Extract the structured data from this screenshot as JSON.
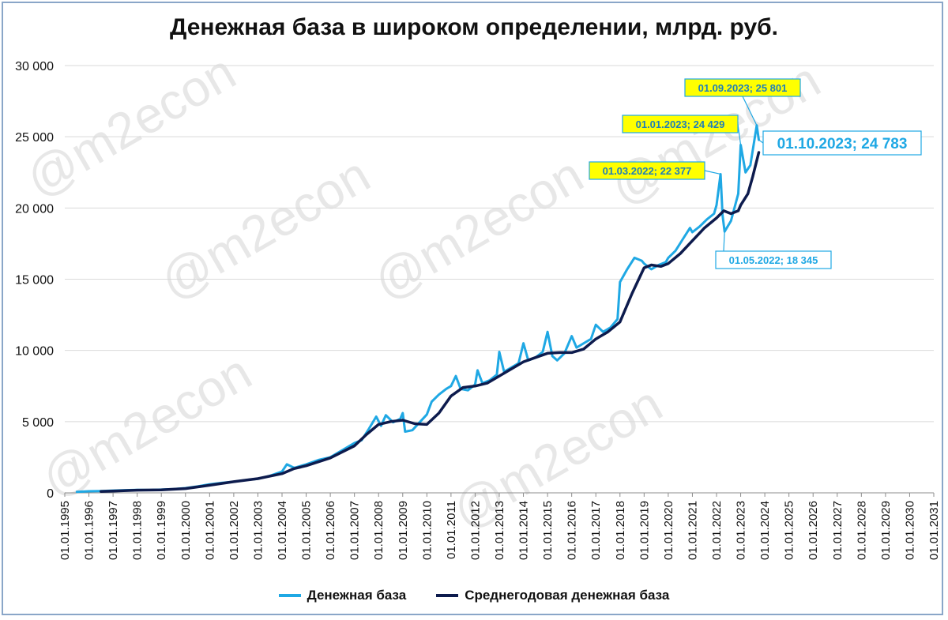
{
  "chart_data": {
    "type": "line",
    "title": "Денежная база в широком определении, млрд. руб.",
    "watermark": "@m2econ",
    "xlabel": "",
    "ylabel": "",
    "ylim": [
      0,
      30000
    ],
    "y_ticks": [
      0,
      5000,
      10000,
      15000,
      20000,
      25000,
      30000
    ],
    "y_tick_labels": [
      "0",
      "5 000",
      "10 000",
      "15 000",
      "20 000",
      "25 000",
      "30 000"
    ],
    "x_range": [
      1995,
      2031
    ],
    "x_tick_labels": [
      "01.01.1995",
      "01.01.1996",
      "01.01.1997",
      "01.01.1998",
      "01.01.1999",
      "01.01.2000",
      "01.01.2001",
      "01.01.2002",
      "01.01.2003",
      "01.01.2004",
      "01.01.2005",
      "01.01.2006",
      "01.01.2007",
      "01.01.2008",
      "01.01.2009",
      "01.01.2010",
      "01.01.2011",
      "01.01.2012",
      "01.01.2013",
      "01.01.2014",
      "01.01.2015",
      "01.01.2016",
      "01.01.2017",
      "01.01.2018",
      "01.01.2019",
      "01.01.2020",
      "01.01.2021",
      "01.01.2022",
      "01.01.2023",
      "01.01.2024",
      "01.01.2025",
      "01.01.2026",
      "01.01.2027",
      "01.01.2028",
      "01.01.2029",
      "01.01.2030",
      "01.01.2031"
    ],
    "grid": "horizontal",
    "legend_position": "bottom",
    "series": [
      {
        "name": "Денежная база",
        "color": "#1fa8e4",
        "points": [
          [
            1995.5,
            70
          ],
          [
            1996.0,
            110
          ],
          [
            1996.5,
            130
          ],
          [
            1997.0,
            160
          ],
          [
            1997.5,
            190
          ],
          [
            1998.0,
            210
          ],
          [
            1998.5,
            200
          ],
          [
            1999.0,
            230
          ],
          [
            1999.5,
            260
          ],
          [
            2000.0,
            330
          ],
          [
            2000.5,
            450
          ],
          [
            2001.0,
            600
          ],
          [
            2001.5,
            700
          ],
          [
            2002.0,
            780
          ],
          [
            2002.5,
            900
          ],
          [
            2003.0,
            980
          ],
          [
            2003.5,
            1200
          ],
          [
            2004.0,
            1500
          ],
          [
            2004.2,
            2000
          ],
          [
            2004.5,
            1750
          ],
          [
            2005.0,
            2000
          ],
          [
            2005.5,
            2300
          ],
          [
            2006.0,
            2500
          ],
          [
            2006.5,
            3000
          ],
          [
            2007.0,
            3500
          ],
          [
            2007.3,
            3700
          ],
          [
            2007.6,
            4500
          ],
          [
            2007.9,
            5350
          ],
          [
            2008.1,
            4700
          ],
          [
            2008.3,
            5450
          ],
          [
            2008.6,
            4950
          ],
          [
            2008.9,
            5200
          ],
          [
            2009.0,
            5600
          ],
          [
            2009.1,
            4300
          ],
          [
            2009.4,
            4400
          ],
          [
            2009.7,
            4950
          ],
          [
            2010.0,
            5500
          ],
          [
            2010.2,
            6400
          ],
          [
            2010.5,
            6900
          ],
          [
            2010.8,
            7300
          ],
          [
            2011.0,
            7500
          ],
          [
            2011.2,
            8200
          ],
          [
            2011.4,
            7300
          ],
          [
            2011.7,
            7200
          ],
          [
            2012.0,
            7600
          ],
          [
            2012.1,
            8600
          ],
          [
            2012.3,
            7700
          ],
          [
            2012.6,
            7900
          ],
          [
            2012.9,
            8300
          ],
          [
            2013.0,
            9900
          ],
          [
            2013.2,
            8500
          ],
          [
            2013.5,
            8800
          ],
          [
            2013.8,
            9100
          ],
          [
            2014.0,
            10500
          ],
          [
            2014.2,
            9300
          ],
          [
            2014.5,
            9500
          ],
          [
            2014.8,
            9900
          ],
          [
            2015.0,
            11300
          ],
          [
            2015.2,
            9600
          ],
          [
            2015.4,
            9300
          ],
          [
            2015.7,
            9800
          ],
          [
            2016.0,
            11000
          ],
          [
            2016.2,
            10200
          ],
          [
            2016.5,
            10500
          ],
          [
            2016.8,
            10800
          ],
          [
            2017.0,
            11800
          ],
          [
            2017.3,
            11300
          ],
          [
            2017.6,
            11600
          ],
          [
            2017.9,
            12200
          ],
          [
            2018.0,
            14800
          ],
          [
            2018.3,
            15700
          ],
          [
            2018.6,
            16500
          ],
          [
            2018.9,
            16300
          ],
          [
            2019.0,
            16100
          ],
          [
            2019.3,
            15700
          ],
          [
            2019.6,
            16000
          ],
          [
            2019.9,
            16200
          ],
          [
            2020.0,
            16500
          ],
          [
            2020.3,
            17000
          ],
          [
            2020.6,
            17800
          ],
          [
            2020.9,
            18600
          ],
          [
            2021.0,
            18300
          ],
          [
            2021.3,
            18700
          ],
          [
            2021.6,
            19200
          ],
          [
            2021.9,
            19600
          ],
          [
            2022.0,
            20200
          ],
          [
            2022.167,
            22377
          ],
          [
            2022.25,
            19500
          ],
          [
            2022.333,
            18345
          ],
          [
            2022.6,
            19100
          ],
          [
            2022.9,
            21000
          ],
          [
            2023.0,
            24429
          ],
          [
            2023.2,
            22500
          ],
          [
            2023.4,
            23000
          ],
          [
            2023.667,
            25801
          ],
          [
            2023.75,
            24783
          ]
        ]
      },
      {
        "name": "Среднегодовая денежная база",
        "color": "#0d1b4d",
        "points": [
          [
            1996.5,
            100
          ],
          [
            1997.0,
            130
          ],
          [
            1998.0,
            190
          ],
          [
            1999.0,
            210
          ],
          [
            2000.0,
            300
          ],
          [
            2001.0,
            530
          ],
          [
            2002.0,
            780
          ],
          [
            2003.0,
            1000
          ],
          [
            2004.0,
            1350
          ],
          [
            2004.5,
            1700
          ],
          [
            2005.0,
            1900
          ],
          [
            2006.0,
            2450
          ],
          [
            2007.0,
            3300
          ],
          [
            2007.5,
            4100
          ],
          [
            2008.0,
            4800
          ],
          [
            2008.5,
            5000
          ],
          [
            2009.0,
            5100
          ],
          [
            2009.5,
            4850
          ],
          [
            2010.0,
            4800
          ],
          [
            2010.5,
            5600
          ],
          [
            2011.0,
            6800
          ],
          [
            2011.5,
            7400
          ],
          [
            2012.0,
            7500
          ],
          [
            2012.5,
            7700
          ],
          [
            2013.0,
            8200
          ],
          [
            2013.5,
            8700
          ],
          [
            2014.0,
            9200
          ],
          [
            2014.5,
            9500
          ],
          [
            2015.0,
            9800
          ],
          [
            2015.5,
            9850
          ],
          [
            2016.0,
            9850
          ],
          [
            2016.5,
            10100
          ],
          [
            2017.0,
            10800
          ],
          [
            2017.5,
            11300
          ],
          [
            2018.0,
            12000
          ],
          [
            2018.5,
            14000
          ],
          [
            2019.0,
            15800
          ],
          [
            2019.3,
            16000
          ],
          [
            2019.7,
            15900
          ],
          [
            2020.0,
            16100
          ],
          [
            2020.5,
            16800
          ],
          [
            2021.0,
            17700
          ],
          [
            2021.5,
            18600
          ],
          [
            2022.0,
            19300
          ],
          [
            2022.3,
            19800
          ],
          [
            2022.6,
            19600
          ],
          [
            2022.9,
            19800
          ],
          [
            2023.0,
            20200
          ],
          [
            2023.3,
            21000
          ],
          [
            2023.5,
            22200
          ],
          [
            2023.75,
            23900
          ]
        ]
      }
    ],
    "annotations": [
      {
        "text": "01.09.2023;  25 801",
        "x": 2023.667,
        "y": 25801,
        "style": "yellow"
      },
      {
        "text": "01.01.2023;  24 429",
        "x": 2023.0,
        "y": 24429,
        "style": "yellow"
      },
      {
        "text": "01.03.2022;  22 377",
        "x": 2022.167,
        "y": 22377,
        "style": "yellow"
      },
      {
        "text": "01.10.2023;  24 783",
        "x": 2023.75,
        "y": 24783,
        "style": "blue-large"
      },
      {
        "text": "01.05.2022;  18 345",
        "x": 2022.333,
        "y": 18345,
        "style": "blue"
      }
    ]
  },
  "legend": {
    "item1_label": "Денежная база",
    "item2_label": "Среднегодовая денежная база"
  }
}
